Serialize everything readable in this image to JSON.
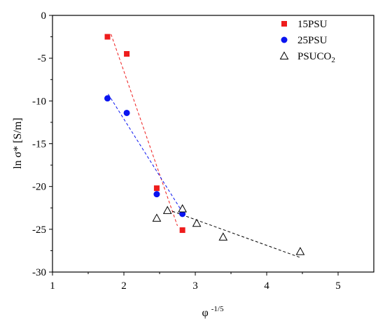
{
  "chart_data": {
    "type": "scatter",
    "xlabel_base": "φ",
    "xlabel_sup": "-1/5",
    "ylabel": "ln σ* [S/m]",
    "xlim": [
      1,
      5.5
    ],
    "ylim": [
      -30,
      0
    ],
    "xticks": [
      1,
      2,
      3,
      4,
      5
    ],
    "yticks": [
      0,
      -5,
      -10,
      -15,
      -20,
      -25,
      -30
    ],
    "legend_position": "top-right",
    "series": [
      {
        "name": "15PSU",
        "marker": "square",
        "color": "#ee1c1c",
        "points": [
          [
            1.77,
            -2.5
          ],
          [
            2.04,
            -4.5
          ],
          [
            2.46,
            -20.2
          ],
          [
            2.82,
            -25.1
          ]
        ],
        "fit": [
          [
            1.82,
            -2.2
          ],
          [
            2.75,
            -24.6
          ]
        ]
      },
      {
        "name": "25PSU",
        "marker": "circle",
        "color": "#0a14f0",
        "points": [
          [
            1.77,
            -9.7
          ],
          [
            2.04,
            -11.4
          ],
          [
            2.46,
            -20.9
          ],
          [
            2.82,
            -23.2
          ]
        ],
        "fit": [
          [
            1.78,
            -9.2
          ],
          [
            2.82,
            -23.0
          ]
        ]
      },
      {
        "name": "PSUCO",
        "name_sub": "2",
        "marker": "triangle",
        "color": "#000000",
        "points": [
          [
            2.46,
            -23.7
          ],
          [
            2.61,
            -22.8
          ],
          [
            2.82,
            -22.6
          ],
          [
            3.02,
            -24.3
          ],
          [
            3.39,
            -25.9
          ],
          [
            4.47,
            -27.6
          ]
        ],
        "fit": [
          [
            2.68,
            -22.9
          ],
          [
            4.47,
            -28.3
          ]
        ]
      }
    ]
  }
}
